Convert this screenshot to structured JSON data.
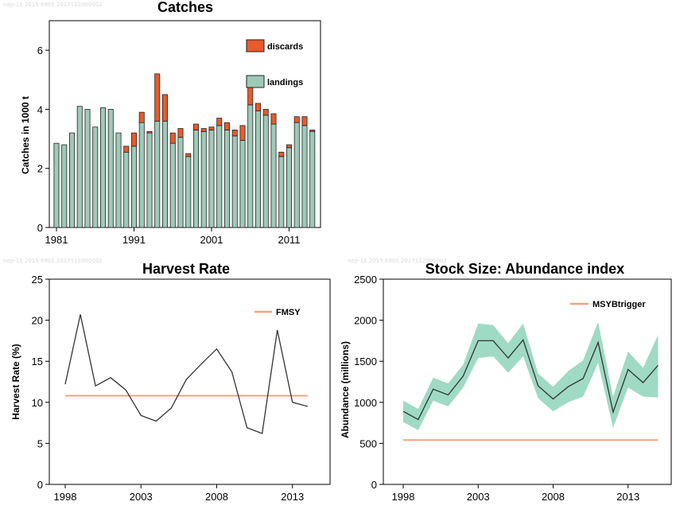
{
  "watermarks": [
    "nep-11 2015 6905 2017112000002",
    "nep-11 2015 6905 2017112000002",
    "nep-11 2015 6905 2017112000002"
  ],
  "colors": {
    "landings": "#9ecab8",
    "discards": "#ea5a2b",
    "fmsy": "#f4a07e",
    "msybtrigger": "#f4a07e",
    "band": "#7fcdb0",
    "line": "#333333"
  },
  "chart_data": [
    {
      "type": "bar",
      "title": "Catches",
      "ylabel": "Catches in 1000 t",
      "xlabel": "",
      "ylim": [
        0,
        7
      ],
      "yticks": [
        0,
        2,
        4,
        6
      ],
      "xticks": [
        1981,
        1991,
        2001,
        2011
      ],
      "stacked": true,
      "legend_position": "top-right",
      "categories": [
        1981,
        1982,
        1983,
        1984,
        1985,
        1986,
        1987,
        1988,
        1989,
        1990,
        1991,
        1992,
        1993,
        1994,
        1995,
        1996,
        1997,
        1998,
        1999,
        2000,
        2001,
        2002,
        2003,
        2004,
        2005,
        2006,
        2007,
        2008,
        2009,
        2010,
        2011,
        2012,
        2013,
        2014
      ],
      "series": [
        {
          "name": "landings",
          "values": [
            2.85,
            2.8,
            3.2,
            4.1,
            4.0,
            3.4,
            4.05,
            4.0,
            3.2,
            2.55,
            2.75,
            3.55,
            3.2,
            3.6,
            3.6,
            2.85,
            3.05,
            2.4,
            3.3,
            3.25,
            3.3,
            3.45,
            3.3,
            3.1,
            2.95,
            4.15,
            3.95,
            3.8,
            3.5,
            2.4,
            2.7,
            3.55,
            3.45,
            3.25
          ]
        },
        {
          "name": "discards",
          "values": [
            0,
            0,
            0,
            0,
            0,
            0,
            0,
            0,
            0,
            0.2,
            0.45,
            0.35,
            0.05,
            1.6,
            0.9,
            0.35,
            0.3,
            0.1,
            0.2,
            0.1,
            0.1,
            0.25,
            0.25,
            0.2,
            0.5,
            0.65,
            0.25,
            0.2,
            0.35,
            0.15,
            0.1,
            0.2,
            0.3,
            0.05
          ]
        }
      ]
    },
    {
      "type": "line",
      "title": "Harvest Rate",
      "ylabel": "Harvest Rate (%)",
      "xlabel": "",
      "ylim": [
        0,
        25
      ],
      "yticks": [
        0,
        5,
        10,
        15,
        20,
        25
      ],
      "xticks": [
        1998,
        2003,
        2008,
        2013
      ],
      "legend_position": "top-right",
      "x": [
        1998,
        1999,
        2000,
        2001,
        2002,
        2003,
        2004,
        2005,
        2006,
        2007,
        2008,
        2009,
        2010,
        2011,
        2012,
        2013,
        2014
      ],
      "series": [
        {
          "name": "",
          "values": [
            12.2,
            20.7,
            12.0,
            13.0,
            11.5,
            8.4,
            7.7,
            9.3,
            12.8,
            14.7,
            16.5,
            13.7,
            6.9,
            6.2,
            18.8,
            10.0,
            9.5
          ]
        }
      ],
      "reference": {
        "name": "FMSY",
        "value": 10.8
      }
    },
    {
      "type": "area",
      "title": "Stock Size: Abundance index",
      "ylabel": "Abundance (millions)",
      "xlabel": "",
      "ylim": [
        0,
        2500
      ],
      "yticks": [
        0,
        500,
        1000,
        1500,
        2000,
        2500
      ],
      "xticks": [
        1998,
        2003,
        2008,
        2013
      ],
      "legend_position": "top-right",
      "x": [
        1998,
        1999,
        2000,
        2001,
        2002,
        2003,
        2004,
        2005,
        2006,
        2007,
        2008,
        2009,
        2010,
        2011,
        2012,
        2013,
        2014,
        2015
      ],
      "series": [
        {
          "name": "",
          "values": [
            890,
            790,
            1160,
            1090,
            1320,
            1750,
            1750,
            1540,
            1760,
            1200,
            1040,
            1190,
            1290,
            1730,
            880,
            1400,
            1240,
            1450
          ],
          "lower": [
            760,
            660,
            1020,
            950,
            1180,
            1540,
            1560,
            1360,
            1560,
            1050,
            890,
            1000,
            1070,
            1480,
            690,
            1180,
            1070,
            1060
          ],
          "upper": [
            1020,
            920,
            1300,
            1230,
            1460,
            1960,
            1940,
            1720,
            1960,
            1350,
            1190,
            1380,
            1510,
            1980,
            1070,
            1620,
            1420,
            1820
          ]
        }
      ],
      "reference": {
        "name": "MSYBtrigger",
        "value": 540
      }
    }
  ]
}
